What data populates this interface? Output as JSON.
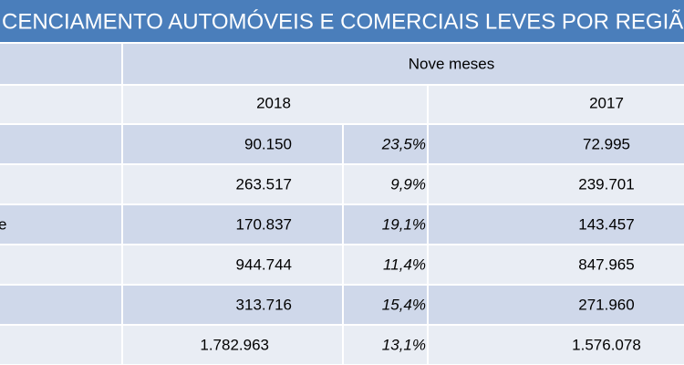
{
  "title": "CENCIAMENTO AUTOMÓVEIS E COMERCIAIS LEVES POR REGIÃ",
  "header": {
    "period": "Nove meses",
    "years": [
      "2018",
      "2017"
    ]
  },
  "rows": [
    {
      "v2018": "90.150",
      "pct": "23,5%",
      "v2017": "72.995"
    },
    {
      "v2018": "263.517",
      "pct": "9,9%",
      "v2017": "239.701"
    },
    {
      "label": "e",
      "v2018": "170.837",
      "pct": "19,1%",
      "v2017": "143.457"
    },
    {
      "v2018": "944.744",
      "pct": "11,4%",
      "v2017": "847.965"
    },
    {
      "v2018": "313.716",
      "pct": "15,4%",
      "v2017": "271.960"
    },
    {
      "v2018": "1.782.963",
      "pct": "13,1%",
      "v2017": "1.576.078"
    }
  ]
}
